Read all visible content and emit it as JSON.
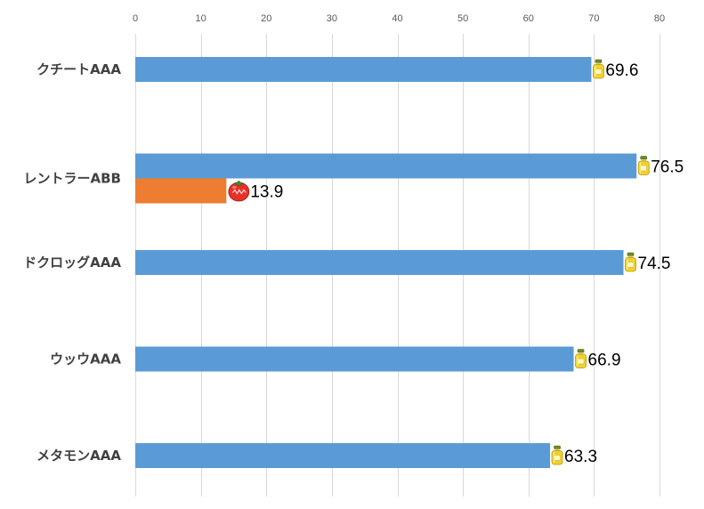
{
  "chart_data": {
    "type": "bar",
    "orientation": "horizontal",
    "axis_position": "top",
    "grid": true,
    "xlim": [
      0,
      80
    ],
    "x_ticks": [
      "0",
      "10",
      "20",
      "30",
      "40",
      "50",
      "60",
      "70",
      "80"
    ],
    "title": "",
    "xlabel": "",
    "ylabel": "",
    "categories": [
      "クチートAAA",
      "レントラーABB",
      "ドクロッグAAA",
      "ウッウAAA",
      "メタモンAAA"
    ],
    "series": [
      {
        "color": "#5b9bd5",
        "icon": "honey-jar-icon",
        "values": [
          69.6,
          76.5,
          74.5,
          66.9,
          63.3
        ],
        "labels": [
          "69.6",
          "76.5",
          "74.5",
          "66.9",
          "63.3"
        ]
      },
      {
        "color": "#ed7d31",
        "icon": "tomato-icon",
        "values": [
          null,
          13.9,
          null,
          null,
          null
        ],
        "labels": [
          null,
          "13.9",
          null,
          null,
          null
        ]
      }
    ]
  }
}
